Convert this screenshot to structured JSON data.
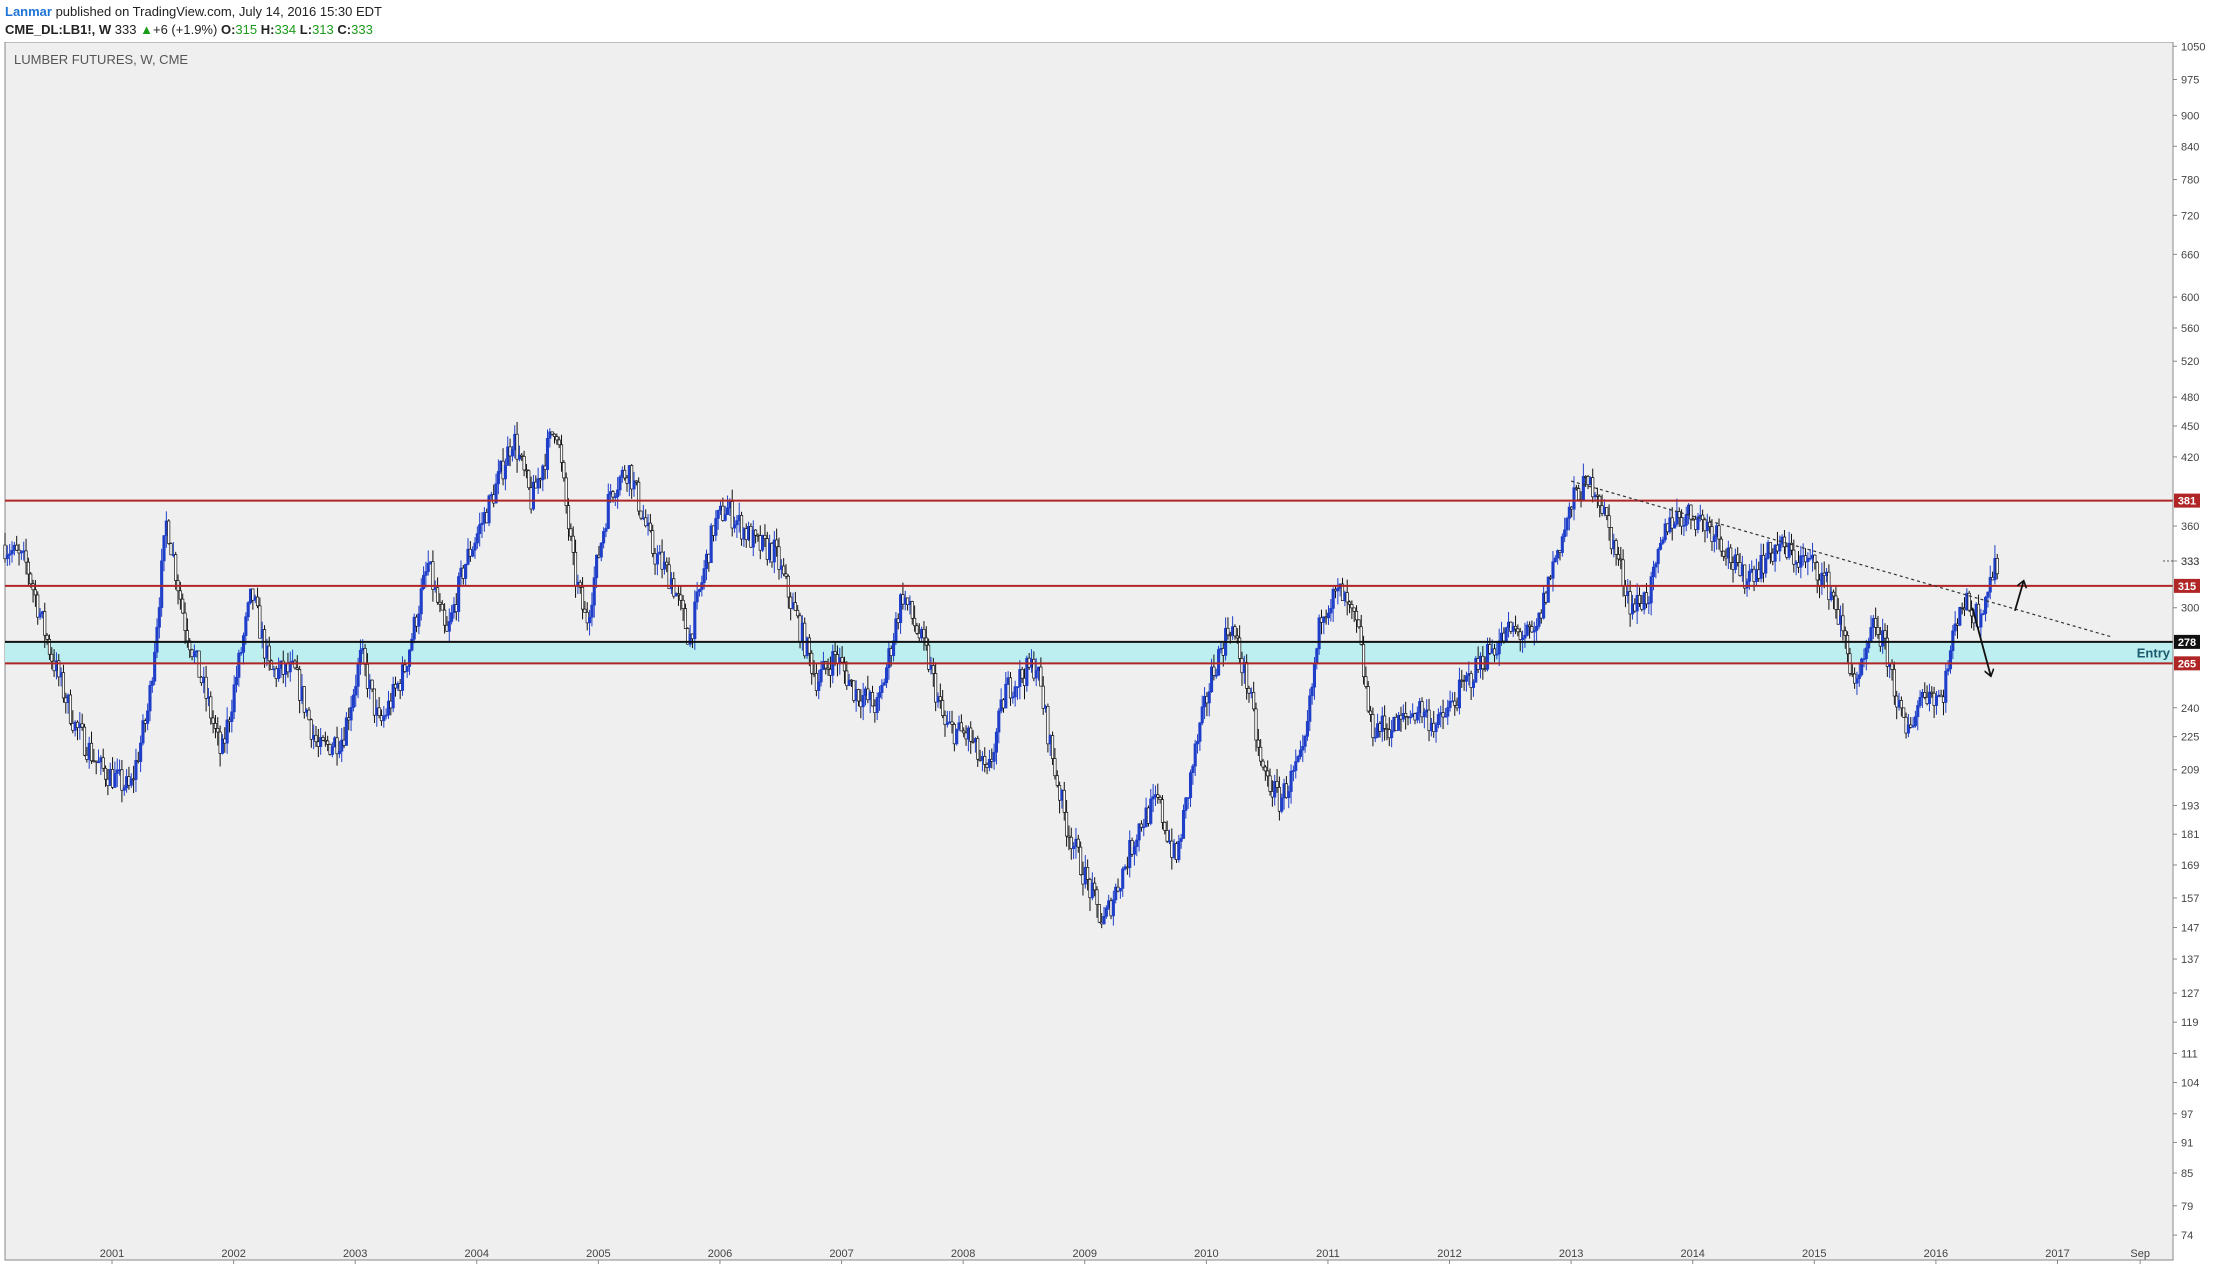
{
  "header": {
    "author": "Lanmar",
    "published_text": " published on TradingView.com, July 14, 2016 15:30 EDT",
    "symbol": "CME_DL:LB1!, W",
    "last": "333",
    "change_icon": "up-triangle-icon",
    "change": "+6 (+1.9%)",
    "o_label": "O:",
    "o_value": "315",
    "h_label": "H:",
    "h_value": "334",
    "l_label": "L:",
    "l_value": "313",
    "c_label": "C:",
    "c_value": "333"
  },
  "colors": {
    "background": "#efefef",
    "resistance_line": "#b02525",
    "support_line": "#111111",
    "zone_fill": "#bdeff0",
    "candle_up": "#1f3fc9",
    "candle_down": "#111111"
  },
  "chart_data": {
    "type": "candlestick",
    "title": "LUMBER FUTURES, W, CME",
    "y_scale": "log",
    "ylim": [
      70,
      1060
    ],
    "y_ticks": [
      74,
      79,
      85,
      91,
      97,
      104,
      111,
      119,
      127,
      137,
      147,
      157,
      169,
      181,
      193,
      209,
      225,
      240,
      265,
      278,
      300,
      315,
      333,
      360,
      381,
      420,
      450,
      480,
      520,
      560,
      600,
      660,
      720,
      780,
      840,
      900,
      975,
      1050
    ],
    "x_ticks": [
      {
        "label": "2001",
        "t": 2001.0
      },
      {
        "label": "2002",
        "t": 2002.0
      },
      {
        "label": "2003",
        "t": 2003.0
      },
      {
        "label": "2004",
        "t": 2004.0
      },
      {
        "label": "2005",
        "t": 2005.0
      },
      {
        "label": "2006",
        "t": 2006.0
      },
      {
        "label": "2007",
        "t": 2007.0
      },
      {
        "label": "2008",
        "t": 2008.0
      },
      {
        "label": "2009",
        "t": 2009.0
      },
      {
        "label": "2010",
        "t": 2010.0
      },
      {
        "label": "2011",
        "t": 2011.0
      },
      {
        "label": "2012",
        "t": 2012.0
      },
      {
        "label": "2013",
        "t": 2013.0
      },
      {
        "label": "2014",
        "t": 2014.0
      },
      {
        "label": "2015",
        "t": 2015.0
      },
      {
        "label": "2016",
        "t": 2016.0
      },
      {
        "label": "2017",
        "t": 2017.0
      },
      {
        "label": "Sep",
        "t": 2017.68
      }
    ],
    "xlim": [
      2000.12,
      2017.95
    ],
    "price_path": [
      [
        2000.12,
        345
      ],
      [
        2000.3,
        330
      ],
      [
        2000.5,
        270
      ],
      [
        2000.7,
        230
      ],
      [
        2000.9,
        210
      ],
      [
        2001.15,
        200
      ],
      [
        2001.3,
        240
      ],
      [
        2001.45,
        365
      ],
      [
        2001.6,
        290
      ],
      [
        2001.8,
        240
      ],
      [
        2001.9,
        215
      ],
      [
        2002.15,
        310
      ],
      [
        2002.3,
        260
      ],
      [
        2002.5,
        260
      ],
      [
        2002.7,
        218
      ],
      [
        2002.9,
        225
      ],
      [
        2003.05,
        270
      ],
      [
        2003.2,
        230
      ],
      [
        2003.4,
        260
      ],
      [
        2003.6,
        330
      ],
      [
        2003.75,
        280
      ],
      [
        2003.9,
        330
      ],
      [
        2004.15,
        390
      ],
      [
        2004.3,
        440
      ],
      [
        2004.45,
        380
      ],
      [
        2004.65,
        455
      ],
      [
        2004.8,
        325
      ],
      [
        2004.9,
        290
      ],
      [
        2005.1,
        390
      ],
      [
        2005.25,
        410
      ],
      [
        2005.45,
        340
      ],
      [
        2005.6,
        320
      ],
      [
        2005.75,
        280
      ],
      [
        2005.95,
        360
      ],
      [
        2006.05,
        375
      ],
      [
        2006.3,
        345
      ],
      [
        2006.45,
        340
      ],
      [
        2006.6,
        300
      ],
      [
        2006.8,
        255
      ],
      [
        2006.95,
        270
      ],
      [
        2007.1,
        250
      ],
      [
        2007.3,
        240
      ],
      [
        2007.5,
        310
      ],
      [
        2007.7,
        270
      ],
      [
        2007.85,
        230
      ],
      [
        2008.05,
        225
      ],
      [
        2008.2,
        205
      ],
      [
        2008.35,
        250
      ],
      [
        2008.6,
        265
      ],
      [
        2008.75,
        210
      ],
      [
        2008.85,
        185
      ],
      [
        2009.0,
        165
      ],
      [
        2009.15,
        148
      ],
      [
        2009.3,
        165
      ],
      [
        2009.45,
        185
      ],
      [
        2009.6,
        195
      ],
      [
        2009.75,
        170
      ],
      [
        2009.9,
        215
      ],
      [
        2010.05,
        260
      ],
      [
        2010.2,
        290
      ],
      [
        2010.35,
        250
      ],
      [
        2010.45,
        210
      ],
      [
        2010.6,
        195
      ],
      [
        2010.8,
        215
      ],
      [
        2010.95,
        300
      ],
      [
        2011.1,
        310
      ],
      [
        2011.25,
        285
      ],
      [
        2011.35,
        230
      ],
      [
        2011.55,
        230
      ],
      [
        2011.75,
        240
      ],
      [
        2011.9,
        230
      ],
      [
        2012.1,
        250
      ],
      [
        2012.3,
        270
      ],
      [
        2012.5,
        285
      ],
      [
        2012.7,
        280
      ],
      [
        2012.85,
        330
      ],
      [
        2013.05,
        390
      ],
      [
        2013.2,
        395
      ],
      [
        2013.35,
        345
      ],
      [
        2013.5,
        300
      ],
      [
        2013.65,
        310
      ],
      [
        2013.8,
        365
      ],
      [
        2014.0,
        370
      ],
      [
        2014.2,
        355
      ],
      [
        2014.4,
        320
      ],
      [
        2014.55,
        330
      ],
      [
        2014.7,
        345
      ],
      [
        2014.85,
        335
      ],
      [
        2015.0,
        330
      ],
      [
        2015.15,
        310
      ],
      [
        2015.35,
        250
      ],
      [
        2015.5,
        290
      ],
      [
        2015.6,
        270
      ],
      [
        2015.75,
        225
      ],
      [
        2015.9,
        250
      ],
      [
        2016.05,
        245
      ],
      [
        2016.2,
        305
      ],
      [
        2016.35,
        295
      ],
      [
        2016.45,
        320
      ],
      [
        2016.52,
        333
      ]
    ],
    "levels": [
      {
        "name": "resistance",
        "value": 381,
        "label": "381",
        "style": "red"
      },
      {
        "name": "resistance",
        "value": 315,
        "label": "315",
        "style": "red"
      },
      {
        "name": "support",
        "value": 278,
        "label": "278",
        "style": "black"
      },
      {
        "name": "support",
        "value": 265,
        "label": "265",
        "style": "red"
      }
    ],
    "zone": {
      "from": 265,
      "to": 278,
      "label": "Entry"
    },
    "trendline": {
      "from": [
        2013.0,
        398
      ],
      "to": [
        2017.45,
        281
      ]
    },
    "last_price_label": "333",
    "arrows": [
      {
        "from": [
          2016.3,
          300
        ],
        "to": [
          2016.45,
          258
        ],
        "direction": "down"
      },
      {
        "from": [
          2016.65,
          298
        ],
        "to": [
          2016.72,
          318
        ],
        "direction": "up"
      }
    ]
  }
}
